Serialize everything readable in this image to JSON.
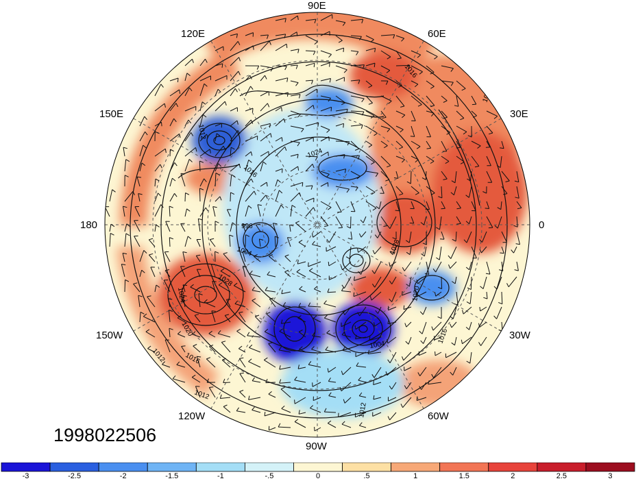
{
  "timestamp": "1998022506",
  "lon_labels": {
    "e90": "90E",
    "e60": "60E",
    "e120": "120E",
    "e150": "150E",
    "e30": "30E",
    "deg180": "180",
    "deg0": "0",
    "w150": "150W",
    "w30": "30W",
    "w120": "120W",
    "w60": "60W",
    "w90": "90W"
  },
  "contour_labels": [
    "1016",
    "1012",
    "1024",
    "1016",
    "1012",
    "996",
    "1004",
    "1028",
    "1024",
    "1020",
    "1012",
    "1016",
    "1012",
    "1004",
    "1020",
    "1016",
    "1012",
    "1028"
  ],
  "colorbar": {
    "colors": [
      "#1a14d8",
      "#2a5fe0",
      "#4a8ff0",
      "#6fb4f5",
      "#a4def6",
      "#d4f2f8",
      "#fdf6d3",
      "#fde0a4",
      "#f7a877",
      "#f27555",
      "#e8433b",
      "#c91d2b",
      "#9c0d1f"
    ],
    "tick_labels": [
      "-3",
      "-2.5",
      "-2",
      "-1.5",
      "-1",
      "-.5",
      "0",
      ".5",
      "1",
      "1.5",
      "2",
      "2.5",
      "3"
    ]
  },
  "anomaly_colors": {
    "neutral": "#fdf6d3",
    "warm_light": "#f9c79a",
    "warm": "#f08a5f",
    "warm_strong": "#e45a3e",
    "cool_light": "#bfe7f7",
    "cool": "#7cb8ee",
    "cool_strong": "#2f5fd6"
  }
}
